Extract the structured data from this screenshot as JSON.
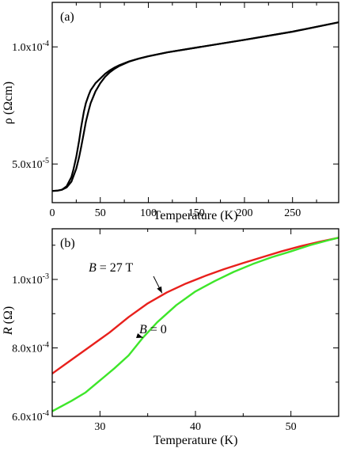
{
  "chart_data": [
    {
      "type": "line",
      "panel_label": "(a)",
      "xlabel": "Temperature (K)",
      "ylabel": "ρ (Ωcm)",
      "xlim": [
        0,
        298
      ],
      "ylim": [
        3.35e-05,
        0.000119
      ],
      "x_ticks": [
        0,
        50,
        100,
        150,
        200,
        250
      ],
      "x_tick_labels": [
        "0",
        "50",
        "100",
        "150",
        "200",
        "250"
      ],
      "x_minor_ticks": [
        25,
        75,
        125,
        175,
        225,
        275
      ],
      "y_ticks": [
        5e-05,
        0.0001
      ],
      "y_tick_labels": [
        "5.0x10-5",
        "1.0x10-4"
      ],
      "grid": false,
      "series": [
        {
          "color": "#000000",
          "x": [
            0,
            5,
            10,
            15,
            20,
            22,
            25,
            28,
            30,
            33,
            35,
            38,
            40,
            45,
            50,
            55,
            60,
            65,
            70,
            80,
            90,
            100,
            120,
            150,
            200,
            250,
            298
          ],
          "y": [
            3.85e-05,
            3.86e-05,
            3.9e-05,
            4.05e-05,
            4.45e-05,
            4.75e-05,
            5.3e-05,
            6e-05,
            6.55e-05,
            7.25e-05,
            7.6e-05,
            7.95e-05,
            8.15e-05,
            8.45e-05,
            8.65e-05,
            8.85e-05,
            9e-05,
            9.12e-05,
            9.22e-05,
            9.38e-05,
            9.5e-05,
            9.6e-05,
            9.77e-05,
            9.97e-05,
            0.000103,
            0.0001065,
            0.0001105
          ]
        },
        {
          "color": "#000000",
          "x": [
            0,
            5,
            10,
            15,
            20,
            25,
            28,
            30,
            33,
            35,
            38,
            40,
            45,
            50,
            55,
            60,
            65,
            70,
            80,
            90,
            100,
            120,
            150,
            200,
            250,
            298
          ],
          "y": [
            3.85e-05,
            3.86e-05,
            3.9e-05,
            4e-05,
            4.25e-05,
            4.8e-05,
            5.3e-05,
            5.7e-05,
            6.35e-05,
            6.8e-05,
            7.3e-05,
            7.6e-05,
            8.1e-05,
            8.45e-05,
            8.72e-05,
            8.92e-05,
            9.07e-05,
            9.19e-05,
            9.37e-05,
            9.5e-05,
            9.6e-05,
            9.77e-05,
            9.97e-05,
            0.000103,
            0.0001065,
            0.0001105
          ]
        }
      ]
    },
    {
      "type": "line",
      "panel_label": "(b)",
      "xlabel": "Temperature (K)",
      "ylabel": "R (Ω)",
      "xlim": [
        25,
        55
      ],
      "ylim": [
        0.0006,
        0.001148
      ],
      "x_ticks": [
        30,
        40,
        50
      ],
      "x_tick_labels": [
        "30",
        "40",
        "50"
      ],
      "x_minor_ticks": [
        25,
        35,
        45,
        55
      ],
      "y_ticks": [
        0.0006,
        0.0008,
        0.001
      ],
      "y_tick_labels": [
        "6.0x10-4",
        "8.0x10-4",
        "1.0x10-3"
      ],
      "y_minor_ticks": [
        0.0007,
        0.0009,
        0.0011
      ],
      "grid": false,
      "series": [
        {
          "name": "B = 27 T",
          "color": "#e8201c",
          "x": [
            25,
            27,
            29,
            31,
            33,
            35,
            37,
            39,
            41,
            43,
            45,
            47,
            49,
            51,
            53,
            55
          ],
          "y": [
            0.000725,
            0.000765,
            0.000805,
            0.000845,
            0.00089,
            0.00093,
            0.000962,
            0.000988,
            0.00101,
            0.00103,
            0.001048,
            0.001065,
            0.001082,
            0.001097,
            0.00111,
            0.001122
          ]
        },
        {
          "name": "B = 0",
          "color": "#3ee62a",
          "x": [
            25,
            27,
            28.5,
            30,
            31.5,
            33,
            34.5,
            36,
            38,
            40,
            42,
            44,
            46,
            48,
            50,
            52,
            54,
            55
          ],
          "y": [
            0.000615,
            0.000645,
            0.00067,
            0.000705,
            0.00074,
            0.000778,
            0.00083,
            0.000875,
            0.000925,
            0.000965,
            0.000995,
            0.001022,
            0.001045,
            0.001065,
            0.001082,
            0.0011,
            0.001115,
            0.001122
          ]
        }
      ],
      "annotations": [
        {
          "italic": "B",
          "rest": " = 27 T",
          "arrow_to": [
            36.5,
            0.00096
          ]
        },
        {
          "italic": "B",
          "rest": " = 0",
          "arrow_to": [
            34.5,
            0.00083
          ]
        }
      ]
    }
  ]
}
